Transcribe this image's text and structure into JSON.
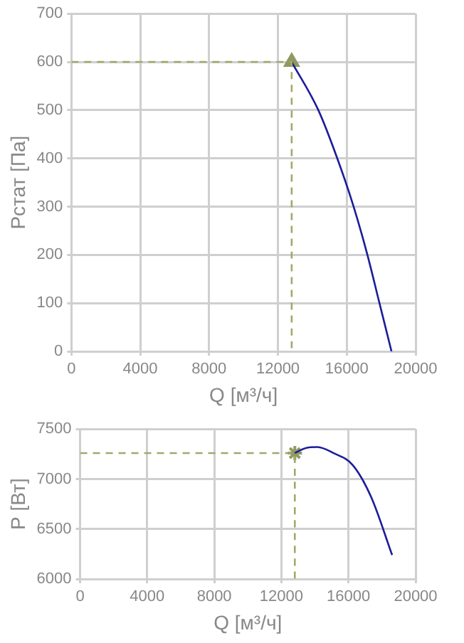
{
  "chart_data": [
    {
      "type": "line",
      "xlabel": "Q [м³/ч]",
      "ylabel": "Рстат [Па]",
      "xlim": [
        0,
        20000
      ],
      "xticks": [
        0,
        4000,
        8000,
        12000,
        16000,
        20000
      ],
      "ylim": [
        0,
        700
      ],
      "yticks": [
        0,
        100,
        200,
        300,
        400,
        500,
        600,
        700
      ],
      "grid": true,
      "legend": false,
      "series": [
        {
          "type": "line",
          "line_style": "dashed",
          "marker": "none",
          "color": "#a3a86a",
          "x": [
            0,
            12800,
            12800
          ],
          "values": [
            600,
            600,
            0
          ]
        },
        {
          "line_style": "solid",
          "marker": "none",
          "color": "#1c1c9c",
          "x": [
            12800,
            14350,
            15450,
            16400,
            17200,
            17900,
            18600
          ],
          "values": [
            600,
            500,
            400,
            300,
            200,
            100,
            0
          ]
        },
        {
          "type": "scatter",
          "marker": "triangle",
          "color": "#8f9a60",
          "x": [
            12800
          ],
          "values": [
            600
          ]
        }
      ]
    },
    {
      "type": "line",
      "xlabel": "Q [м³/ч]",
      "ylabel": "Р [Вт]",
      "xlim": [
        0,
        20000
      ],
      "xticks": [
        0,
        4000,
        8000,
        12000,
        16000,
        20000
      ],
      "ylim": [
        6000,
        7500
      ],
      "yticks": [
        6000,
        6500,
        7000,
        7500
      ],
      "grid": true,
      "legend": false,
      "series": [
        {
          "type": "line",
          "line_style": "dashed",
          "marker": "none",
          "color": "#a3a86a",
          "x": [
            0,
            12800,
            12800
          ],
          "values": [
            7260,
            7260,
            6000
          ]
        },
        {
          "line_style": "solid",
          "marker": "none",
          "color": "#1c1c9c",
          "x": [
            12800,
            13450,
            14150,
            15100,
            16250,
            17350,
            18600
          ],
          "values": [
            7260,
            7310,
            7320,
            7260,
            7140,
            6820,
            6240
          ]
        },
        {
          "type": "scatter",
          "marker": "cross",
          "color": "#8f9a60",
          "x": [
            12800
          ],
          "values": [
            7260
          ]
        }
      ]
    }
  ]
}
